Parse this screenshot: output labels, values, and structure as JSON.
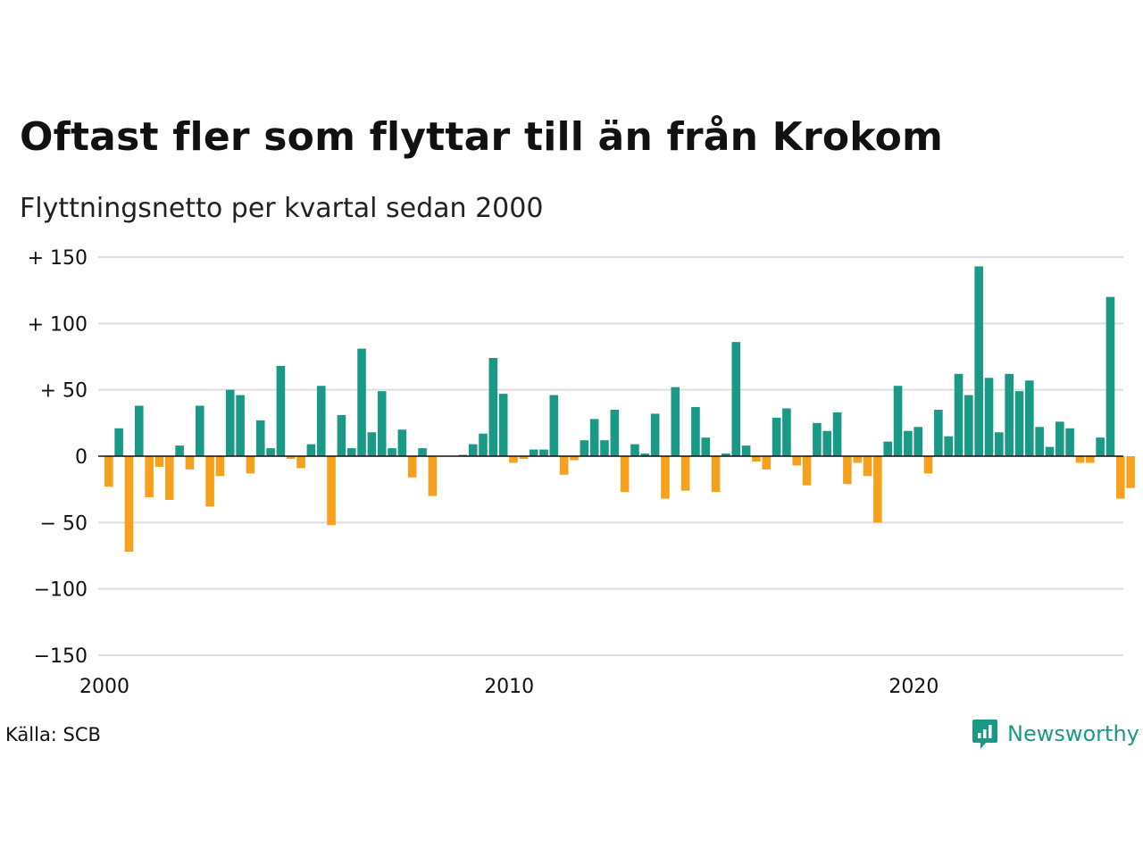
{
  "title": "Oftast fler som flyttar till än från Krokom",
  "subtitle": "Flyttningsnetto per kvartal sedan 2000",
  "source": "Källa: SCB",
  "brand": {
    "name": "Newsworthy",
    "icon": "newsworthy-logo-icon",
    "color": "#1a9a86"
  },
  "colors": {
    "positive": "#1a9a86",
    "negative": "#f5a11e",
    "grid": "#dddddd",
    "zero": "#111111"
  },
  "chart_data": {
    "type": "bar",
    "title": "Oftast fler som flyttar till än från Krokom",
    "subtitle": "Flyttningsnetto per kvartal sedan 2000",
    "xlabel": "",
    "ylabel": "",
    "ylim": [
      -150,
      150
    ],
    "yticks": [
      150,
      100,
      50,
      0,
      -50,
      -100,
      -150
    ],
    "ytick_labels": [
      "+ 150",
      "+ 100",
      "+  50",
      "0",
      "− 50",
      "−100",
      "−150"
    ],
    "xticks": [
      2000,
      2010,
      2020
    ],
    "xtick_labels": [
      "2000",
      "2010",
      "2020"
    ],
    "grid": true,
    "categories": [
      "2000 K1",
      "2000 K2",
      "2000 K3",
      "2000 K4",
      "2001 K1",
      "2001 K2",
      "2001 K3",
      "2001 K4",
      "2002 K1",
      "2002 K2",
      "2002 K3",
      "2002 K4",
      "2003 K1",
      "2003 K2",
      "2003 K3",
      "2003 K4",
      "2004 K1",
      "2004 K2",
      "2004 K3",
      "2004 K4",
      "2005 K1",
      "2005 K2",
      "2005 K3",
      "2005 K4",
      "2006 K1",
      "2006 K2",
      "2006 K3",
      "2006 K4",
      "2007 K1",
      "2007 K2",
      "2007 K3",
      "2007 K4",
      "2008 K1",
      "2008 K2",
      "2008 K3",
      "2008 K4",
      "2009 K1",
      "2009 K2",
      "2009 K3",
      "2009 K4",
      "2010 K1",
      "2010 K2",
      "2010 K3",
      "2010 K4",
      "2011 K1",
      "2011 K2",
      "2011 K3",
      "2011 K4",
      "2012 K1",
      "2012 K2",
      "2012 K3",
      "2012 K4",
      "2013 K1",
      "2013 K2",
      "2013 K3",
      "2013 K4",
      "2014 K1",
      "2014 K2",
      "2014 K3",
      "2014 K4",
      "2015 K1",
      "2015 K2",
      "2015 K3",
      "2015 K4",
      "2016 K1",
      "2016 K2",
      "2016 K3",
      "2016 K4",
      "2017 K1",
      "2017 K2",
      "2017 K3",
      "2017 K4",
      "2018 K1",
      "2018 K2",
      "2018 K3",
      "2018 K4",
      "2019 K1",
      "2019 K2",
      "2019 K3",
      "2019 K4",
      "2020 K1",
      "2020 K2",
      "2020 K3",
      "2020 K4",
      "2021 K1",
      "2021 K2",
      "2021 K3",
      "2021 K4",
      "2022 K1",
      "2022 K2",
      "2022 K3",
      "2022 K4",
      "2023 K1",
      "2023 K2",
      "2023 K3",
      "2023 K4",
      "2024 K1",
      "2024 K2",
      "2024 K3",
      "2024 K4",
      "2025 K1",
      "2025 K2"
    ],
    "values": [
      -23,
      21,
      -72,
      38,
      -31,
      -8,
      -33,
      8,
      -10,
      38,
      -38,
      -15,
      50,
      46,
      -13,
      27,
      6,
      68,
      -2,
      -9,
      9,
      53,
      -52,
      31,
      6,
      81,
      18,
      49,
      6,
      20,
      -16,
      6,
      -30,
      0,
      0,
      1,
      9,
      17,
      74,
      47,
      -5,
      -2,
      5,
      5,
      46,
      -14,
      -3,
      12,
      28,
      12,
      35,
      -27,
      9,
      2,
      32,
      -32,
      52,
      -26,
      37,
      14,
      -27,
      2,
      86,
      8,
      -4,
      -10,
      29,
      36,
      -7,
      -22,
      25,
      19,
      33,
      -21,
      -5,
      -15,
      -50,
      11,
      53,
      19,
      22,
      -13,
      35,
      15,
      62,
      46,
      143,
      59,
      18,
      62,
      49,
      57,
      22,
      7,
      26,
      21,
      -5,
      -5,
      14,
      120,
      -32,
      -24
    ]
  }
}
